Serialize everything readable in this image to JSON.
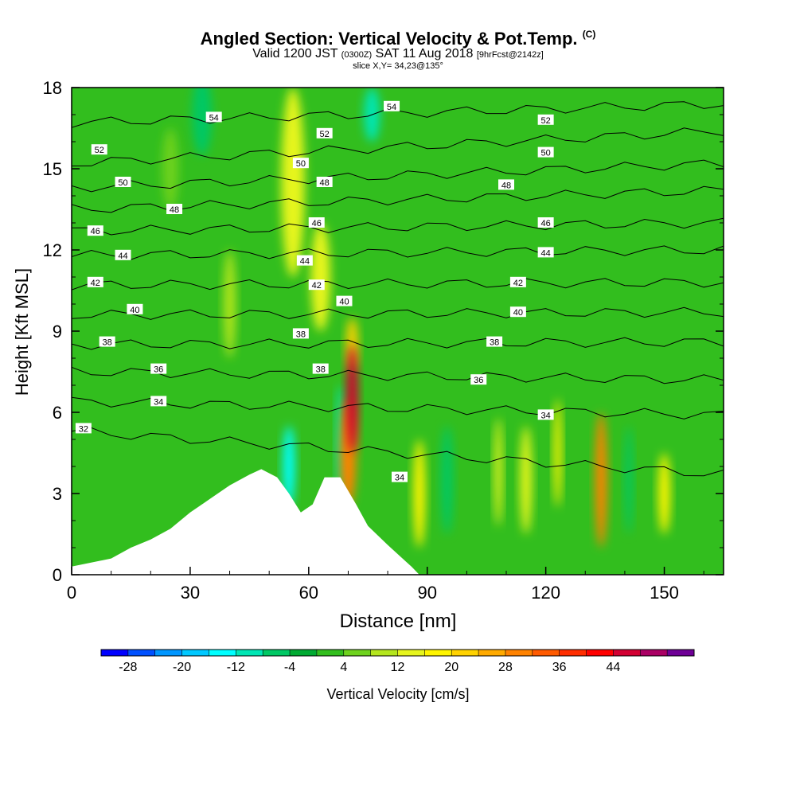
{
  "title": "Angled Section: Vertical Velocity & Pot.Temp.",
  "title_mark": "(C)",
  "subtitle": {
    "valid": "Valid 1200 JST",
    "utc": "(0300Z)",
    "date": "SAT 11 Aug 2018",
    "fcst": "[9hrFcst@2142z]"
  },
  "slice_text": "slice X,Y= 34,23@135°",
  "colorbar_title": "Vertical Velocity [cm/s]",
  "colors": {
    "scale": [
      "#0000ff",
      "#0050ff",
      "#0096ff",
      "#00c8ff",
      "#00ffff",
      "#00e6b4",
      "#00c864",
      "#00aa32",
      "#32be1e",
      "#6ed21e",
      "#b4e61e",
      "#e6f51e",
      "#fff500",
      "#ffd200",
      "#ffaa00",
      "#ff8200",
      "#ff5a00",
      "#ff2d00",
      "#ff0000",
      "#d20032",
      "#aa0064",
      "#6e0096"
    ],
    "terrain": "#ffffff",
    "contour": "#000000"
  },
  "chart_data": {
    "type": "heatmap",
    "title": "Angled Section: Vertical Velocity & Pot.Temp.",
    "xlabel": "Distance [nm]",
    "ylabel": "Height [Kft MSL]",
    "xlim": [
      0,
      165
    ],
    "ylim": [
      0,
      18
    ],
    "x_ticks": [
      0,
      30,
      60,
      90,
      120,
      150
    ],
    "y_ticks": [
      0,
      3,
      6,
      9,
      12,
      15,
      18
    ],
    "x_tick_labels": [
      "0",
      "30",
      "60",
      "90",
      "120",
      "150"
    ],
    "y_tick_labels": [
      "0",
      "3",
      "6",
      "9",
      "12",
      "15",
      "18"
    ],
    "grid": false,
    "colorbar": {
      "label": "Vertical Velocity [cm/s]",
      "bounds": [
        -32,
        -28,
        -24,
        -20,
        -16,
        -12,
        -8,
        -4,
        0,
        4,
        8,
        12,
        16,
        20,
        24,
        28,
        32,
        36,
        40,
        44,
        48,
        52
      ],
      "tick_labels": [
        "-28",
        "-20",
        "-12",
        "-4",
        "4",
        "12",
        "20",
        "28",
        "36",
        "44"
      ]
    },
    "terrain_height_kft": {
      "x": [
        0,
        10,
        15,
        20,
        25,
        30,
        35,
        40,
        45,
        48,
        52,
        55,
        58,
        61,
        64,
        68,
        72,
        75,
        80,
        83,
        86,
        88
      ],
      "y": [
        0.3,
        0.6,
        1.0,
        1.3,
        1.7,
        2.3,
        2.8,
        3.3,
        3.7,
        3.9,
        3.6,
        3.0,
        2.3,
        2.6,
        3.6,
        3.6,
        2.6,
        1.8,
        1.1,
        0.7,
        0.3,
        0.0
      ]
    },
    "vertical_velocity_cells": [
      {
        "x": 56,
        "y": 14.5,
        "w": 6,
        "h": 7,
        "value": 14
      },
      {
        "x": 63,
        "y": 11.0,
        "w": 5,
        "h": 4,
        "value": 12
      },
      {
        "x": 71,
        "y": 6.5,
        "w": 3,
        "h": 4,
        "value": 44
      },
      {
        "x": 70,
        "y": 4.5,
        "w": 4,
        "h": 4,
        "value": 28
      },
      {
        "x": 71,
        "y": 8.5,
        "w": 3,
        "h": 2,
        "value": 20
      },
      {
        "x": 76,
        "y": 17.0,
        "w": 4,
        "h": 2,
        "value": -12
      },
      {
        "x": 55,
        "y": 4.0,
        "w": 3,
        "h": 3,
        "value": -16
      },
      {
        "x": 68,
        "y": 5.0,
        "w": 2,
        "h": 4,
        "value": -10
      },
      {
        "x": 88,
        "y": 3.0,
        "w": 3,
        "h": 4,
        "value": 16
      },
      {
        "x": 95,
        "y": 3.5,
        "w": 3,
        "h": 4,
        "value": -8
      },
      {
        "x": 108,
        "y": 3.8,
        "w": 2,
        "h": 4,
        "value": 12
      },
      {
        "x": 115,
        "y": 3.5,
        "w": 3,
        "h": 4,
        "value": 12
      },
      {
        "x": 123,
        "y": 4.5,
        "w": 2,
        "h": 4,
        "value": 16
      },
      {
        "x": 134,
        "y": 3.5,
        "w": 3,
        "h": 5,
        "value": 28
      },
      {
        "x": 141,
        "y": 3.5,
        "w": 2,
        "h": 4,
        "value": -8
      },
      {
        "x": 150,
        "y": 3.0,
        "w": 3,
        "h": 3,
        "value": 16
      },
      {
        "x": 33,
        "y": 17.0,
        "w": 5,
        "h": 3,
        "value": -8
      },
      {
        "x": 40,
        "y": 10.0,
        "w": 3,
        "h": 4,
        "value": 8
      },
      {
        "x": 25,
        "y": 15.0,
        "w": 4,
        "h": 3,
        "value": 4
      }
    ],
    "pot_temp_contours": [
      {
        "level": 32,
        "y_left": 5.3,
        "y_right": 3.7
      },
      {
        "level": 34,
        "y_left": 6.4,
        "y_right": 5.9
      },
      {
        "level": 36,
        "y_left": 7.5,
        "y_right": 7.2
      },
      {
        "level": 38,
        "y_left": 8.5,
        "y_right": 8.6
      },
      {
        "level": 40,
        "y_left": 9.6,
        "y_right": 9.7
      },
      {
        "level": 42,
        "y_left": 10.7,
        "y_right": 10.8
      },
      {
        "level": 44,
        "y_left": 11.8,
        "y_right": 12.0
      },
      {
        "level": 46,
        "y_left": 12.7,
        "y_right": 13.0
      },
      {
        "level": 48,
        "y_left": 13.5,
        "y_right": 14.2
      },
      {
        "level": 50,
        "y_left": 14.3,
        "y_right": 15.2
      },
      {
        "level": 52,
        "y_left": 15.2,
        "y_right": 16.4
      },
      {
        "level": 54,
        "y_left": 16.7,
        "y_right": 17.4
      }
    ],
    "contour_labels": [
      {
        "text": "32",
        "x": 3,
        "y": 5.4
      },
      {
        "text": "34",
        "x": 22,
        "y": 6.4
      },
      {
        "text": "34",
        "x": 120,
        "y": 5.9
      },
      {
        "text": "34",
        "x": 83,
        "y": 3.6
      },
      {
        "text": "36",
        "x": 22,
        "y": 7.6
      },
      {
        "text": "36",
        "x": 103,
        "y": 7.2
      },
      {
        "text": "38",
        "x": 9,
        "y": 8.6
      },
      {
        "text": "38",
        "x": 58,
        "y": 8.9
      },
      {
        "text": "38",
        "x": 63,
        "y": 7.6
      },
      {
        "text": "38",
        "x": 107,
        "y": 8.6
      },
      {
        "text": "40",
        "x": 16,
        "y": 9.8
      },
      {
        "text": "40",
        "x": 69,
        "y": 10.1
      },
      {
        "text": "40",
        "x": 113,
        "y": 9.7
      },
      {
        "text": "42",
        "x": 6,
        "y": 10.8
      },
      {
        "text": "42",
        "x": 62,
        "y": 10.7
      },
      {
        "text": "42",
        "x": 113,
        "y": 10.8
      },
      {
        "text": "44",
        "x": 13,
        "y": 11.8
      },
      {
        "text": "44",
        "x": 59,
        "y": 11.6
      },
      {
        "text": "44",
        "x": 120,
        "y": 11.9
      },
      {
        "text": "46",
        "x": 6,
        "y": 12.7
      },
      {
        "text": "46",
        "x": 62,
        "y": 13.0
      },
      {
        "text": "46",
        "x": 120,
        "y": 13.0
      },
      {
        "text": "48",
        "x": 26,
        "y": 13.5
      },
      {
        "text": "48",
        "x": 64,
        "y": 14.5
      },
      {
        "text": "48",
        "x": 110,
        "y": 14.4
      },
      {
        "text": "50",
        "x": 13,
        "y": 14.5
      },
      {
        "text": "50",
        "x": 58,
        "y": 15.2
      },
      {
        "text": "50",
        "x": 120,
        "y": 15.6
      },
      {
        "text": "52",
        "x": 7,
        "y": 15.7
      },
      {
        "text": "52",
        "x": 64,
        "y": 16.3
      },
      {
        "text": "52",
        "x": 120,
        "y": 16.8
      },
      {
        "text": "54",
        "x": 36,
        "y": 16.9
      },
      {
        "text": "54",
        "x": 81,
        "y": 17.3
      }
    ]
  }
}
